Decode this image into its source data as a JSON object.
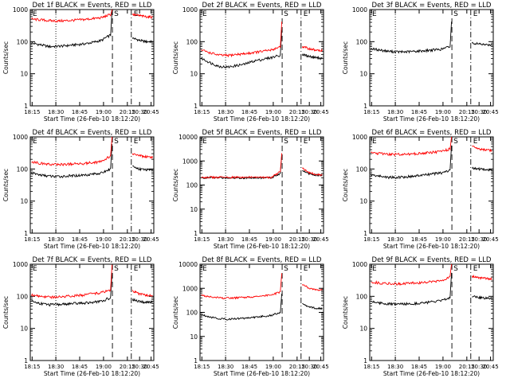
{
  "figure": {
    "x_tick_labels": [
      "18:15",
      "18:30",
      "18:45",
      "19:00",
      "20:15",
      "20:30",
      "20:45"
    ],
    "y_tick_labels": [
      "1",
      "10",
      "100",
      "1000"
    ],
    "y_tick_labels_wide": [
      "1",
      "10",
      "100",
      "1000",
      "10000"
    ],
    "marker_labels": {
      "s": "S",
      "e": "E"
    }
  },
  "chart_data": [
    {
      "type": "line",
      "title": "Det 1f BLACK = Events, RED = LLD",
      "xlabel": "Start Time (26-Feb-10 18:12:20)",
      "ylabel": "Counts/sec",
      "yscale": "log",
      "ylim": [
        1,
        1000
      ],
      "x_ticks": [
        "18:15",
        "18:30",
        "18:45",
        "19:00",
        "20:15",
        "20:30",
        "20:45"
      ],
      "vlines": {
        "dotted": "18:30",
        "dashed": "20:15",
        "dashdot": "20:30"
      },
      "series": [
        {
          "color": "#000000",
          "values": [
            90,
            80,
            70,
            72,
            75,
            80,
            85,
            95,
            110,
            160
          ],
          "post_gap": [
            130,
            110,
            100,
            100
          ]
        },
        {
          "color": "#ff0000",
          "values": [
            500,
            480,
            450,
            440,
            450,
            470,
            490,
            520,
            560,
            700
          ],
          "post_gap": [
            700,
            650,
            600,
            580
          ]
        }
      ]
    },
    {
      "type": "line",
      "title": "Det 2f BLACK = Events, RED = LLD",
      "xlabel": "Start Time (26-Feb-10 18:12:20)",
      "ylabel": "Counts/sec",
      "yscale": "log",
      "ylim": [
        1,
        1000
      ],
      "x_ticks": [
        "18:15",
        "18:30",
        "18:45",
        "19:00",
        "20:15",
        "20:30",
        "20:45"
      ],
      "vlines": {
        "dotted": "18:30",
        "dashed": "20:15",
        "dashdot": "20:30"
      },
      "series": [
        {
          "color": "#000000",
          "values": [
            30,
            22,
            17,
            16,
            18,
            20,
            25,
            28,
            32,
            38
          ],
          "post_gap": [
            40,
            35,
            32,
            30
          ]
        },
        {
          "color": "#ff0000",
          "values": [
            55,
            45,
            38,
            37,
            40,
            42,
            46,
            50,
            55,
            70
          ],
          "post_gap": [
            70,
            60,
            55,
            52
          ]
        }
      ]
    },
    {
      "type": "line",
      "title": "Det 3f BLACK = Events, RED = LLD",
      "xlabel": "Start Time (26-Feb-10 18:12:20)",
      "ylabel": "Counts/sec",
      "yscale": "log",
      "ylim": [
        1,
        1000
      ],
      "x_ticks": [
        "18:15",
        "18:30",
        "18:45",
        "19:00",
        "20:15",
        "20:30",
        "20:45"
      ],
      "vlines": {
        "dotted": "18:30",
        "dashed": "20:15",
        "dashdot": "20:30"
      },
      "series": [
        {
          "color": "#000000",
          "values": [
            60,
            55,
            50,
            48,
            48,
            50,
            52,
            55,
            58,
            70
          ],
          "post_gap": [
            90,
            85,
            80,
            80
          ]
        }
      ]
    },
    {
      "type": "line",
      "title": "Det 4f BLACK = Events, RED = LLD",
      "xlabel": "Start Time (26-Feb-10 18:12:20)",
      "ylabel": "Counts/sec",
      "yscale": "log",
      "ylim": [
        1,
        1000
      ],
      "x_ticks": [
        "18:15",
        "18:30",
        "18:45",
        "19:00",
        "20:15",
        "20:30",
        "20:45"
      ],
      "vlines": {
        "dotted": "18:30",
        "dashed": "20:15",
        "dashdot": "20:30"
      },
      "series": [
        {
          "color": "#000000",
          "values": [
            75,
            65,
            60,
            58,
            60,
            62,
            65,
            70,
            75,
            100
          ],
          "post_gap": [
            120,
            100,
            95,
            90
          ]
        },
        {
          "color": "#ff0000",
          "values": [
            170,
            150,
            140,
            138,
            140,
            145,
            150,
            160,
            170,
            250
          ],
          "post_gap": [
            300,
            260,
            240,
            230
          ]
        }
      ]
    },
    {
      "type": "line",
      "title": "Det 5f BLACK = Events, RED = LLD",
      "xlabel": "Start Time (26-Feb-10 18:12:20)",
      "ylabel": "Counts/sec",
      "yscale": "log",
      "ylim": [
        1,
        10000
      ],
      "x_ticks": [
        "18:15",
        "18:30",
        "18:45",
        "19:00",
        "20:15",
        "20:30",
        "20:45"
      ],
      "vlines": {
        "dotted": "18:30",
        "dashed": "20:15",
        "dashdot": "20:30"
      },
      "series": [
        {
          "color": "#000000",
          "values": [
            200,
            200,
            200,
            200,
            200,
            200,
            200,
            200,
            200,
            300
          ],
          "post_gap": [
            400,
            300,
            260,
            250
          ]
        },
        {
          "color": "#ff0000",
          "values": [
            210,
            210,
            210,
            210,
            210,
            210,
            210,
            210,
            210,
            350
          ],
          "post_gap": [
            500,
            330,
            280,
            260
          ]
        }
      ]
    },
    {
      "type": "line",
      "title": "Det 6f BLACK = Events, RED = LLD",
      "xlabel": "Start Time (26-Feb-10 18:12:20)",
      "ylabel": "Counts/sec",
      "yscale": "log",
      "ylim": [
        1,
        1000
      ],
      "x_ticks": [
        "18:15",
        "18:30",
        "18:45",
        "19:00",
        "20:15",
        "20:30",
        "20:45"
      ],
      "vlines": {
        "dotted": "18:30",
        "dashed": "20:15",
        "dashdot": "20:30"
      },
      "series": [
        {
          "color": "#000000",
          "values": [
            65,
            60,
            55,
            55,
            57,
            60,
            65,
            70,
            75,
            90
          ],
          "post_gap": [
            110,
            100,
            95,
            90
          ]
        },
        {
          "color": "#ff0000",
          "values": [
            320,
            300,
            290,
            285,
            290,
            300,
            310,
            330,
            350,
            420
          ],
          "post_gap": [
            500,
            430,
            400,
            380
          ]
        }
      ]
    },
    {
      "type": "line",
      "title": "Det 7f BLACK = Events, RED = LLD",
      "xlabel": "Start Time (26-Feb-10 18:12:20)",
      "ylabel": "Counts/sec",
      "yscale": "log",
      "ylim": [
        1,
        1000
      ],
      "x_ticks": [
        "18:15",
        "18:30",
        "18:45",
        "19:00",
        "20:15",
        "20:30",
        "20:45"
      ],
      "vlines": {
        "dotted": "18:30",
        "dashed": "20:15",
        "dashdot": "20:30"
      },
      "series": [
        {
          "color": "#000000",
          "values": [
            70,
            60,
            55,
            55,
            58,
            60,
            62,
            65,
            70,
            90
          ],
          "post_gap": [
            80,
            70,
            65,
            65
          ]
        },
        {
          "color": "#ff0000",
          "values": [
            110,
            100,
            95,
            95,
            100,
            105,
            110,
            120,
            130,
            160
          ],
          "post_gap": [
            150,
            120,
            110,
            105
          ]
        }
      ]
    },
    {
      "type": "line",
      "title": "Det 8f BLACK = Events, RED = LLD",
      "xlabel": "Start Time (26-Feb-10 18:12:20)",
      "ylabel": "Counts/sec",
      "yscale": "log",
      "ylim": [
        1,
        10000
      ],
      "x_ticks": [
        "18:15",
        "18:30",
        "18:45",
        "19:00",
        "20:15",
        "20:30",
        "20:45"
      ],
      "vlines": {
        "dotted": "18:30",
        "dashed": "20:15",
        "dashdot": "20:30"
      },
      "series": [
        {
          "color": "#000000",
          "values": [
            80,
            65,
            55,
            52,
            55,
            58,
            62,
            68,
            75,
            100
          ],
          "post_gap": [
            220,
            170,
            150,
            140
          ]
        },
        {
          "color": "#ff0000",
          "values": [
            500,
            450,
            400,
            390,
            400,
            420,
            450,
            480,
            520,
            700
          ],
          "post_gap": [
            1500,
            1000,
            900,
            850
          ]
        }
      ]
    },
    {
      "type": "line",
      "title": "Det 9f BLACK = Events, RED = LLD",
      "xlabel": "Start Time (26-Feb-10 18:12:20)",
      "ylabel": "Counts/sec",
      "yscale": "log",
      "ylim": [
        1,
        1000
      ],
      "x_ticks": [
        "18:15",
        "18:30",
        "18:45",
        "19:00",
        "20:15",
        "20:30",
        "20:45"
      ],
      "vlines": {
        "dotted": "18:30",
        "dashed": "20:15",
        "dashdot": "20:30"
      },
      "series": [
        {
          "color": "#000000",
          "values": [
            70,
            62,
            58,
            57,
            58,
            60,
            63,
            67,
            72,
            90
          ],
          "post_gap": [
            100,
            92,
            88,
            85
          ]
        },
        {
          "color": "#ff0000",
          "values": [
            280,
            260,
            250,
            245,
            250,
            260,
            270,
            290,
            310,
            400
          ],
          "post_gap": [
            420,
            380,
            360,
            350
          ]
        }
      ]
    }
  ]
}
